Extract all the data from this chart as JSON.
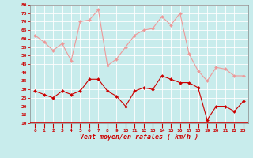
{
  "xlabel": "Vent moyen/en rafales ( km/h )",
  "hours": [
    0,
    1,
    2,
    3,
    4,
    5,
    6,
    7,
    8,
    9,
    10,
    11,
    12,
    13,
    14,
    15,
    16,
    17,
    18,
    19,
    20,
    21,
    22,
    23
  ],
  "wind_avg": [
    29,
    27,
    25,
    29,
    27,
    29,
    36,
    36,
    29,
    26,
    20,
    29,
    31,
    30,
    38,
    36,
    34,
    34,
    31,
    12,
    20,
    20,
    17,
    23
  ],
  "wind_gust": [
    62,
    58,
    53,
    57,
    47,
    70,
    71,
    77,
    44,
    48,
    55,
    62,
    65,
    66,
    73,
    68,
    75,
    51,
    41,
    35,
    43,
    42,
    38,
    38
  ],
  "ylim_min": 10,
  "ylim_max": 80,
  "yticks": [
    10,
    15,
    20,
    25,
    30,
    35,
    40,
    45,
    50,
    55,
    60,
    65,
    70,
    75,
    80
  ],
  "xticks": [
    0,
    1,
    2,
    3,
    4,
    5,
    6,
    7,
    8,
    9,
    10,
    11,
    12,
    13,
    14,
    15,
    16,
    17,
    18,
    19,
    20,
    21,
    22,
    23
  ],
  "bg_color": "#c8ecec",
  "grid_color": "#b0d8d8",
  "avg_color": "#cc0000",
  "gust_color": "#ee9999",
  "tick_color": "#cc0000",
  "label_color": "#cc0000",
  "spine_color": "#888888",
  "figsize": [
    3.2,
    2.0
  ],
  "dpi": 100
}
